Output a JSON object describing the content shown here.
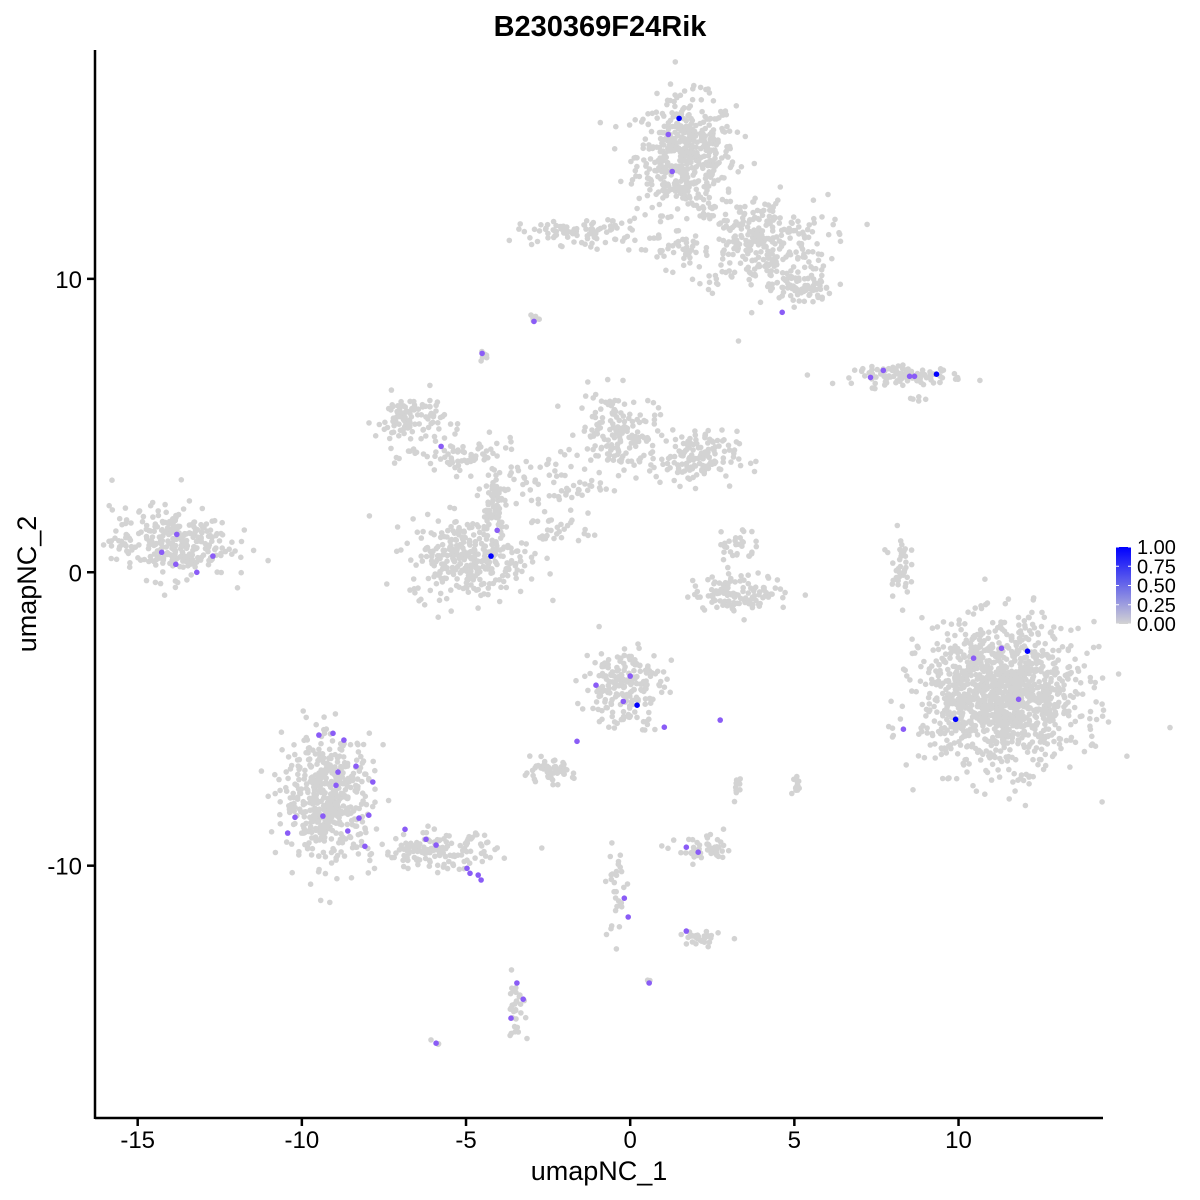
{
  "chart_data": {
    "type": "scatter",
    "title": "B230369F24Rik",
    "xlabel": "umapNC_1",
    "ylabel": "umapNC_2",
    "xlim": [
      -16.3,
      14.4
    ],
    "ylim": [
      -18.6,
      17.8
    ],
    "x_ticks": [
      -15,
      -10,
      -5,
      0,
      5,
      10
    ],
    "x_tick_labels": [
      "-15",
      "-10",
      "-5",
      "0",
      "5",
      "10"
    ],
    "y_ticks": [
      -10,
      0,
      10
    ],
    "y_tick_labels": [
      "-10",
      "0",
      "10"
    ],
    "grid": false,
    "legend": {
      "placement": "right",
      "type": "colorbar",
      "range": [
        0,
        1
      ],
      "ticks": [
        "0.00",
        "0.25",
        "0.50",
        "0.75",
        "1.00"
      ],
      "low_color": "#d3d3d3",
      "high_color": "#0000ff"
    },
    "background_color": "#d3d3d3",
    "background_clusters": [
      {
        "center": [
          1.7,
          14.2
        ],
        "spread": [
          1.0,
          1.3
        ],
        "n": 500
      },
      {
        "center": [
          3.9,
          11.2
        ],
        "spread": [
          1.4,
          1.1
        ],
        "n": 300
      },
      {
        "center": [
          5.2,
          9.7
        ],
        "spread": [
          0.6,
          0.4
        ],
        "n": 80
      },
      {
        "center": [
          -1.5,
          11.6
        ],
        "spread": [
          1.3,
          0.3
        ],
        "n": 90
      },
      {
        "center": [
          1.5,
          11.0
        ],
        "spread": [
          1.2,
          0.3
        ],
        "n": 40
      },
      {
        "center": [
          -2.9,
          8.6
        ],
        "spread": [
          0.1,
          0.1
        ],
        "n": 8
      },
      {
        "center": [
          -4.5,
          7.4
        ],
        "spread": [
          0.1,
          0.1
        ],
        "n": 8
      },
      {
        "center": [
          8.5,
          6.7
        ],
        "spread": [
          1.1,
          0.2
        ],
        "n": 110
      },
      {
        "center": [
          8.7,
          5.9
        ],
        "spread": [
          0.2,
          0.1
        ],
        "n": 5
      },
      {
        "center": [
          -6.7,
          5.2
        ],
        "spread": [
          0.7,
          0.6
        ],
        "n": 110
      },
      {
        "center": [
          -5.0,
          3.9
        ],
        "spread": [
          1.1,
          0.4
        ],
        "n": 70
      },
      {
        "center": [
          -0.4,
          4.8
        ],
        "spread": [
          0.8,
          0.9
        ],
        "n": 150
      },
      {
        "center": [
          1.9,
          3.9
        ],
        "spread": [
          0.9,
          0.6
        ],
        "n": 150
      },
      {
        "center": [
          -2.5,
          3.0
        ],
        "spread": [
          1.2,
          0.7
        ],
        "n": 80
      },
      {
        "center": [
          -4.2,
          2.3
        ],
        "spread": [
          0.3,
          0.8
        ],
        "n": 50
      },
      {
        "center": [
          -4.9,
          0.5
        ],
        "spread": [
          1.2,
          0.9
        ],
        "n": 320
      },
      {
        "center": [
          -2.2,
          1.4
        ],
        "spread": [
          0.6,
          0.3
        ],
        "n": 25
      },
      {
        "center": [
          -14.0,
          1.0
        ],
        "spread": [
          1.2,
          0.8
        ],
        "n": 300
      },
      {
        "center": [
          3.4,
          -0.7
        ],
        "spread": [
          1.0,
          0.4
        ],
        "n": 120
      },
      {
        "center": [
          3.2,
          0.9
        ],
        "spread": [
          0.4,
          0.5
        ],
        "n": 30
      },
      {
        "center": [
          8.2,
          0.3
        ],
        "spread": [
          0.2,
          0.7
        ],
        "n": 40
      },
      {
        "center": [
          11.3,
          -4.2
        ],
        "spread": [
          1.6,
          1.6
        ],
        "n": 1300
      },
      {
        "center": [
          -0.2,
          -3.9
        ],
        "spread": [
          0.8,
          0.9
        ],
        "n": 200
      },
      {
        "center": [
          -2.5,
          -6.8
        ],
        "spread": [
          0.5,
          0.25
        ],
        "n": 60
      },
      {
        "center": [
          -9.2,
          -7.7
        ],
        "spread": [
          0.9,
          1.4
        ],
        "n": 500
      },
      {
        "center": [
          -5.9,
          -9.5
        ],
        "spread": [
          1.2,
          0.4
        ],
        "n": 150
      },
      {
        "center": [
          2.3,
          -9.5
        ],
        "spread": [
          0.6,
          0.3
        ],
        "n": 50
      },
      {
        "center": [
          -0.4,
          -10.8
        ],
        "spread": [
          0.2,
          1.2
        ],
        "n": 30
      },
      {
        "center": [
          2.1,
          -12.5
        ],
        "spread": [
          0.4,
          0.2
        ],
        "n": 30
      },
      {
        "center": [
          3.3,
          -7.4
        ],
        "spread": [
          0.1,
          0.3
        ],
        "n": 10
      },
      {
        "center": [
          5.0,
          -7.3
        ],
        "spread": [
          0.1,
          0.3
        ],
        "n": 12
      },
      {
        "center": [
          -3.5,
          -14.8
        ],
        "spread": [
          0.2,
          0.7
        ],
        "n": 30
      },
      {
        "center": [
          0.6,
          -14.0
        ],
        "spread": [
          0.1,
          0.1
        ],
        "n": 4
      },
      {
        "center": [
          -5.9,
          -16.05
        ],
        "spread": [
          0.1,
          0.1
        ],
        "n": 3
      }
    ],
    "expressed_points": [
      {
        "x": 1.49,
        "y": 15.47,
        "value": 1.0
      },
      {
        "x": 1.16,
        "y": 14.92,
        "value": 0.6
      },
      {
        "x": 1.28,
        "y": 13.66,
        "value": 0.6
      },
      {
        "x": -2.93,
        "y": 8.55,
        "value": 0.6
      },
      {
        "x": 4.63,
        "y": 8.86,
        "value": 0.6
      },
      {
        "x": -4.51,
        "y": 7.46,
        "value": 0.6
      },
      {
        "x": -5.76,
        "y": 4.29,
        "value": 0.6
      },
      {
        "x": -4.05,
        "y": 1.43,
        "value": 0.6
      },
      {
        "x": -4.24,
        "y": 0.55,
        "value": 1.0
      },
      {
        "x": -13.81,
        "y": 1.29,
        "value": 0.6
      },
      {
        "x": -14.27,
        "y": 0.68,
        "value": 0.6
      },
      {
        "x": -13.84,
        "y": 0.27,
        "value": 0.6
      },
      {
        "x": -13.2,
        "y": 0.0,
        "value": 0.6
      },
      {
        "x": -12.71,
        "y": 0.55,
        "value": 0.6
      },
      {
        "x": 7.32,
        "y": 6.64,
        "value": 0.6
      },
      {
        "x": 7.71,
        "y": 6.88,
        "value": 0.6
      },
      {
        "x": 8.51,
        "y": 6.68,
        "value": 0.6
      },
      {
        "x": 8.66,
        "y": 6.68,
        "value": 0.6
      },
      {
        "x": 9.33,
        "y": 6.75,
        "value": 1.0
      },
      {
        "x": 0.0,
        "y": -3.54,
        "value": 0.6
      },
      {
        "x": 0.21,
        "y": -4.53,
        "value": 1.0
      },
      {
        "x": -0.21,
        "y": -4.4,
        "value": 0.6
      },
      {
        "x": -1.04,
        "y": -3.85,
        "value": 0.6
      },
      {
        "x": 1.04,
        "y": -5.28,
        "value": 0.6
      },
      {
        "x": 2.74,
        "y": -5.04,
        "value": 0.6
      },
      {
        "x": -1.62,
        "y": -5.76,
        "value": 0.6
      },
      {
        "x": 9.91,
        "y": -5.01,
        "value": 1.0
      },
      {
        "x": 8.32,
        "y": -5.35,
        "value": 0.6
      },
      {
        "x": 10.46,
        "y": -2.93,
        "value": 0.6
      },
      {
        "x": 11.31,
        "y": -2.59,
        "value": 0.6
      },
      {
        "x": 12.1,
        "y": -2.69,
        "value": 1.0
      },
      {
        "x": 11.83,
        "y": -4.33,
        "value": 0.6
      },
      {
        "x": 1.71,
        "y": -9.37,
        "value": 0.6
      },
      {
        "x": 2.07,
        "y": -9.54,
        "value": 0.6
      },
      {
        "x": -0.18,
        "y": -11.11,
        "value": 0.6
      },
      {
        "x": -0.06,
        "y": -11.75,
        "value": 0.6
      },
      {
        "x": 1.71,
        "y": -12.23,
        "value": 0.6
      },
      {
        "x": 0.58,
        "y": -14.0,
        "value": 0.6
      },
      {
        "x": -3.45,
        "y": -14.0,
        "value": 0.6
      },
      {
        "x": -3.26,
        "y": -14.55,
        "value": 0.6
      },
      {
        "x": -3.63,
        "y": -15.2,
        "value": 0.6
      },
      {
        "x": -5.91,
        "y": -16.05,
        "value": 0.6
      },
      {
        "x": -9.48,
        "y": -5.55,
        "value": 0.6
      },
      {
        "x": -9.05,
        "y": -5.49,
        "value": 0.6
      },
      {
        "x": -8.72,
        "y": -5.72,
        "value": 0.6
      },
      {
        "x": -8.9,
        "y": -6.81,
        "value": 0.6
      },
      {
        "x": -8.96,
        "y": -7.26,
        "value": 0.6
      },
      {
        "x": -8.35,
        "y": -6.61,
        "value": 0.6
      },
      {
        "x": -7.84,
        "y": -7.15,
        "value": 0.6
      },
      {
        "x": -7.96,
        "y": -8.28,
        "value": 0.6
      },
      {
        "x": -8.26,
        "y": -8.38,
        "value": 0.6
      },
      {
        "x": -9.36,
        "y": -8.31,
        "value": 0.6
      },
      {
        "x": -10.21,
        "y": -8.35,
        "value": 0.6
      },
      {
        "x": -10.43,
        "y": -8.89,
        "value": 0.6
      },
      {
        "x": -8.6,
        "y": -8.82,
        "value": 0.6
      },
      {
        "x": -8.08,
        "y": -9.34,
        "value": 0.6
      },
      {
        "x": -6.86,
        "y": -8.76,
        "value": 0.6
      },
      {
        "x": -6.22,
        "y": -9.1,
        "value": 0.6
      },
      {
        "x": -5.91,
        "y": -9.3,
        "value": 0.6
      },
      {
        "x": -4.97,
        "y": -10.09,
        "value": 0.6
      },
      {
        "x": -4.63,
        "y": -10.32,
        "value": 0.6
      },
      {
        "x": -4.54,
        "y": -10.49,
        "value": 0.6
      },
      {
        "x": -4.88,
        "y": -10.26,
        "value": 0.6
      }
    ]
  }
}
